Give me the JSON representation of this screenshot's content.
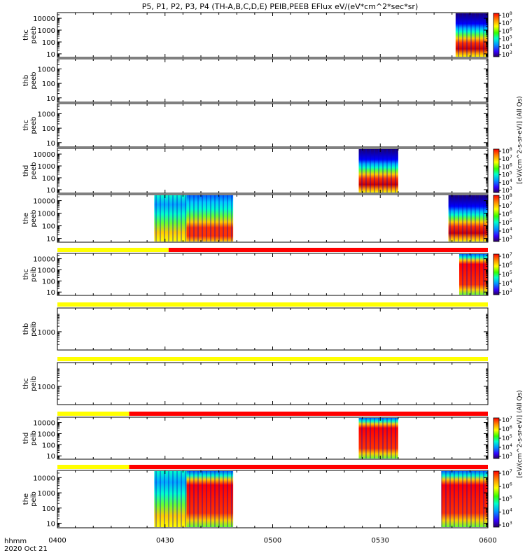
{
  "title": "P5, P1, P2, P3, P4 (TH-A,B,C,D,E) PEIB,PEEB EFlux eV/(eV*cm^2*sec*sr)",
  "time_label": "hhmm",
  "date_label": "2020 Oct 21",
  "colorbar_label_electron": "[eV/(cm^2-s-sr-eV)] (All Qs)",
  "colorbar_label_ion": "[eV/(cm^2-s-sr-eV)] (All Qs)",
  "colors": {
    "flag_yellow": "#ffff00",
    "flag_red": "#ff0000",
    "spectrogram_scale": [
      "#1a0070",
      "#0000ff",
      "#00aaff",
      "#00ffcc",
      "#66ff33",
      "#ffff00",
      "#ff9900",
      "#ff0000",
      "#cc0000"
    ]
  },
  "chart_data": {
    "type": "heatmap",
    "x_axis": {
      "label": "hhmm",
      "range": [
        "0400",
        "0600"
      ],
      "tick_labels": [
        "0400",
        "0430",
        "0500",
        "0530",
        "0600"
      ]
    },
    "panels": [
      {
        "ylabel": [
          "thc",
          "peeb"
        ],
        "y_ticks": [
          "10",
          "100",
          "1000",
          "10000"
        ],
        "yscale": "log",
        "ylim": [
          5,
          30000
        ],
        "flag_bar": null,
        "colorbar": {
          "ticks": [
            "10^3",
            "10^4",
            "10^5",
            "10^6",
            "10^7",
            "10^8"
          ]
        },
        "data_blocks": [
          {
            "start": "0551",
            "end": "0600",
            "style": "electron"
          }
        ]
      },
      {
        "ylabel": [
          "thb",
          "peeb"
        ],
        "y_ticks": [
          "10",
          "100",
          "1000"
        ],
        "yscale": "log",
        "ylim": [
          5,
          5000
        ],
        "flag_bar": null,
        "colorbar": null,
        "data_blocks": []
      },
      {
        "ylabel": [
          "thc",
          "peeb"
        ],
        "y_ticks": [
          "10",
          "100",
          "1000"
        ],
        "yscale": "log",
        "ylim": [
          5,
          5000
        ],
        "flag_bar": null,
        "colorbar": null,
        "data_blocks": []
      },
      {
        "ylabel": [
          "thd",
          "peeb"
        ],
        "y_ticks": [
          "10",
          "100",
          "1000",
          "10000"
        ],
        "yscale": "log",
        "ylim": [
          5,
          30000
        ],
        "flag_bar": null,
        "colorbar": {
          "ticks": [
            "10^3",
            "10^4",
            "10^5",
            "10^6",
            "10^7",
            "10^8"
          ]
        },
        "data_blocks": [
          {
            "start": "0524",
            "end": "0535",
            "style": "electron"
          }
        ]
      },
      {
        "ylabel": [
          "the",
          "peeb"
        ],
        "y_ticks": [
          "10",
          "100",
          "1000",
          "10000"
        ],
        "yscale": "log",
        "ylim": [
          5,
          30000
        ],
        "flag_bar": null,
        "colorbar": {
          "ticks": [
            "10^3",
            "10^4",
            "10^5",
            "10^6",
            "10^7",
            "10^8"
          ]
        },
        "data_blocks": [
          {
            "start": "0427",
            "end": "0436",
            "style": "ion_mixed"
          },
          {
            "start": "0436",
            "end": "0449",
            "style": "electron_alt"
          },
          {
            "start": "0549",
            "end": "0600",
            "style": "electron"
          }
        ]
      },
      {
        "ylabel": [
          "thc",
          "peib"
        ],
        "y_ticks": [
          "10",
          "100",
          "1000",
          "10000"
        ],
        "yscale": "log",
        "ylim": [
          5,
          30000
        ],
        "flag_bar": {
          "segments": [
            {
              "start": "0400",
              "end": "0431",
              "color": "yellow"
            },
            {
              "start": "0431",
              "end": "0600",
              "color": "red"
            }
          ]
        },
        "colorbar": {
          "ticks": [
            "10^3",
            "10^4",
            "10^5",
            "10^6",
            "10^7"
          ]
        },
        "data_blocks": [
          {
            "start": "0552",
            "end": "0600",
            "style": "ion"
          }
        ]
      },
      {
        "ylabel": [
          "thb",
          "peib"
        ],
        "y_ticks": [
          "1000"
        ],
        "yscale": "log",
        "ylim": [
          100,
          20000
        ],
        "flag_bar": {
          "segments": [
            {
              "start": "0400",
              "end": "0600",
              "color": "yellow"
            }
          ]
        },
        "colorbar": null,
        "data_blocks": []
      },
      {
        "ylabel": [
          "thc",
          "peib"
        ],
        "y_ticks": [
          "1000"
        ],
        "yscale": "log",
        "ylim": [
          100,
          20000
        ],
        "flag_bar": {
          "segments": [
            {
              "start": "0400",
              "end": "0600",
              "color": "yellow"
            }
          ]
        },
        "colorbar": null,
        "data_blocks": []
      },
      {
        "ylabel": [
          "thd",
          "peib"
        ],
        "y_ticks": [
          "10",
          "100",
          "1000",
          "10000"
        ],
        "yscale": "log",
        "ylim": [
          5,
          30000
        ],
        "flag_bar": {
          "segments": [
            {
              "start": "0400",
              "end": "0420",
              "color": "yellow"
            },
            {
              "start": "0420",
              "end": "0600",
              "color": "red"
            }
          ]
        },
        "colorbar": {
          "ticks": [
            "10^3",
            "10^4",
            "10^5",
            "10^6",
            "10^7"
          ]
        },
        "data_blocks": [
          {
            "start": "0524",
            "end": "0535",
            "style": "ion"
          }
        ]
      },
      {
        "ylabel": [
          "the",
          "peib"
        ],
        "y_ticks": [
          "10",
          "100",
          "1000",
          "10000"
        ],
        "yscale": "log",
        "ylim": [
          5,
          30000
        ],
        "flag_bar": {
          "segments": [
            {
              "start": "0400",
              "end": "0420",
              "color": "yellow"
            },
            {
              "start": "0420",
              "end": "0600",
              "color": "red"
            }
          ]
        },
        "colorbar": {
          "ticks": [
            "10^3",
            "10^4",
            "10^5",
            "10^6",
            "10^7"
          ]
        },
        "data_blocks": [
          {
            "start": "0427",
            "end": "0436",
            "style": "ion_mixed"
          },
          {
            "start": "0436",
            "end": "0449",
            "style": "ion"
          },
          {
            "start": "0547",
            "end": "0600",
            "style": "ion"
          }
        ]
      }
    ]
  }
}
